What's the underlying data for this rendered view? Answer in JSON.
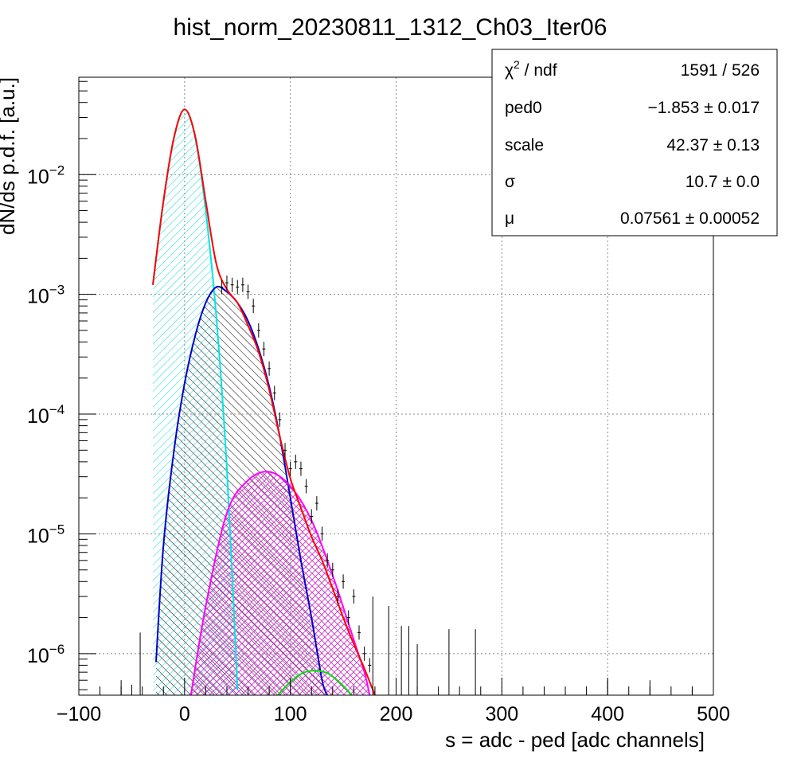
{
  "chart_data": {
    "type": "line",
    "title": "hist_norm_20230811_1312_Ch03_Iter06",
    "xlabel": "s = adc - ped [adc channels]",
    "ylabel": "dN/ds p.d.f. [a.u.]",
    "xlim": [
      -100,
      500
    ],
    "ylim": [
      4.5e-07,
      0.065
    ],
    "yscale": "log",
    "grid": true,
    "x_ticks": [
      {
        "value": -100,
        "label": "−100"
      },
      {
        "value": 0,
        "label": "0"
      },
      {
        "value": 100,
        "label": "100"
      },
      {
        "value": 200,
        "label": "200"
      },
      {
        "value": 300,
        "label": "300"
      },
      {
        "value": 400,
        "label": "400"
      },
      {
        "value": 500,
        "label": "500"
      }
    ],
    "y_ticks": [
      {
        "value": 1e-06,
        "base": "10",
        "exp": "−6"
      },
      {
        "value": 1e-05,
        "base": "10",
        "exp": "−5"
      },
      {
        "value": 0.0001,
        "base": "10",
        "exp": "−4"
      },
      {
        "value": 0.001,
        "base": "10",
        "exp": "−3"
      },
      {
        "value": 0.01,
        "base": "10",
        "exp": "−2"
      }
    ],
    "components": [
      {
        "color": "#00e5e5",
        "fill": "cyan-hatch",
        "x": [
          -30,
          -20,
          -10,
          0,
          10,
          20,
          30,
          40,
          50
        ],
        "y": [
          0.0012,
          0.006,
          0.0205,
          0.035,
          0.0205,
          0.005,
          0.00065,
          3.5e-05,
          5e-07
        ]
      },
      {
        "color": "#0000cc",
        "fill": "black-hatch",
        "x": [
          -27,
          -20,
          -10,
          0,
          10,
          20,
          30,
          40,
          50,
          60,
          70,
          80,
          90,
          100,
          110,
          120,
          130,
          135
        ],
        "y": [
          8.5e-07,
          8e-06,
          5e-05,
          0.00018,
          0.00045,
          0.00085,
          0.00115,
          0.00105,
          0.00085,
          0.0006,
          0.00035,
          0.00017,
          6.5e-05,
          2e-05,
          6e-06,
          2e-06,
          6e-07,
          4.5e-07
        ]
      },
      {
        "color": "#ff00ff",
        "fill": "magenta-hatch",
        "x": [
          6,
          20,
          40,
          60,
          80,
          100,
          120,
          140,
          160,
          170,
          175
        ],
        "y": [
          4.5e-07,
          2.5e-06,
          1.5e-05,
          2.8e-05,
          3.3e-05,
          2.5e-05,
          1.3e-05,
          4.5e-06,
          1.3e-06,
          7e-07,
          4.5e-07
        ]
      },
      {
        "color": "#00dd00",
        "fill": "none",
        "x": [
          88,
          100,
          112,
          124,
          136,
          148,
          158
        ],
        "y": [
          4.5e-07,
          5.8e-07,
          6.9e-07,
          7.2e-07,
          6.8e-07,
          5.6e-07,
          4.5e-07
        ]
      }
    ],
    "total_fit": {
      "color": "#ff0000",
      "x": [
        -30,
        -20,
        -10,
        0,
        10,
        20,
        30,
        40,
        50,
        60,
        70,
        80,
        90,
        100,
        110,
        120,
        130,
        140,
        150,
        160,
        170,
        180
      ],
      "y": [
        0.0012,
        0.006,
        0.0205,
        0.035,
        0.021,
        0.006,
        0.0018,
        0.0011,
        0.00085,
        0.00055,
        0.00033,
        0.00016,
        6.5e-05,
        2.9e-05,
        1.65e-05,
        9.5e-06,
        6e-06,
        3.5e-06,
        2e-06,
        1.2e-06,
        7.5e-07,
        4.5e-07
      ]
    },
    "data_points": {
      "color": "#000000",
      "x": [
        35,
        40,
        45,
        50,
        55,
        60,
        65,
        70,
        75,
        80,
        85,
        90,
        95,
        100,
        105,
        110,
        115,
        120,
        125,
        130,
        135,
        140,
        145,
        150,
        155,
        160,
        165,
        170,
        175
      ],
      "y": [
        0.00115,
        0.00125,
        0.0012,
        0.00115,
        0.0012,
        0.00105,
        0.0008,
        0.0005,
        0.00035,
        0.00024,
        0.00015,
        9e-05,
        5e-05,
        3.5e-05,
        4e-05,
        3.5e-05,
        2.5e-05,
        1.4e-05,
        1.8e-05,
        1e-05,
        6e-06,
        5e-06,
        3e-06,
        4e-06,
        2e-06,
        3e-06,
        1.5e-06,
        1e-06,
        8e-07
      ]
    },
    "spikes": {
      "x": [
        -60,
        -50,
        -42,
        178,
        193,
        205,
        212,
        220,
        250,
        275,
        400,
        440,
        480
      ],
      "y": [
        6e-07,
        5.5e-07,
        1.5e-06,
        3e-06,
        2.5e-06,
        1.7e-06,
        1.7e-06,
        1.2e-06,
        1.6e-06,
        1.6e-06,
        6e-07,
        6e-07,
        5e-07
      ]
    },
    "stats": [
      {
        "name_base": "χ",
        "name_sup": "2",
        "name_rest": " / ndf",
        "value": "1591 / 526"
      },
      {
        "name": "ped0",
        "value": "−1.853 ± 0.017"
      },
      {
        "name": "scale",
        "value": "42.37 ± 0.13"
      },
      {
        "name": "σ",
        "value": "10.7 ± 0.0"
      },
      {
        "name": "μ",
        "value": "0.07561 ± 0.00052"
      }
    ]
  }
}
